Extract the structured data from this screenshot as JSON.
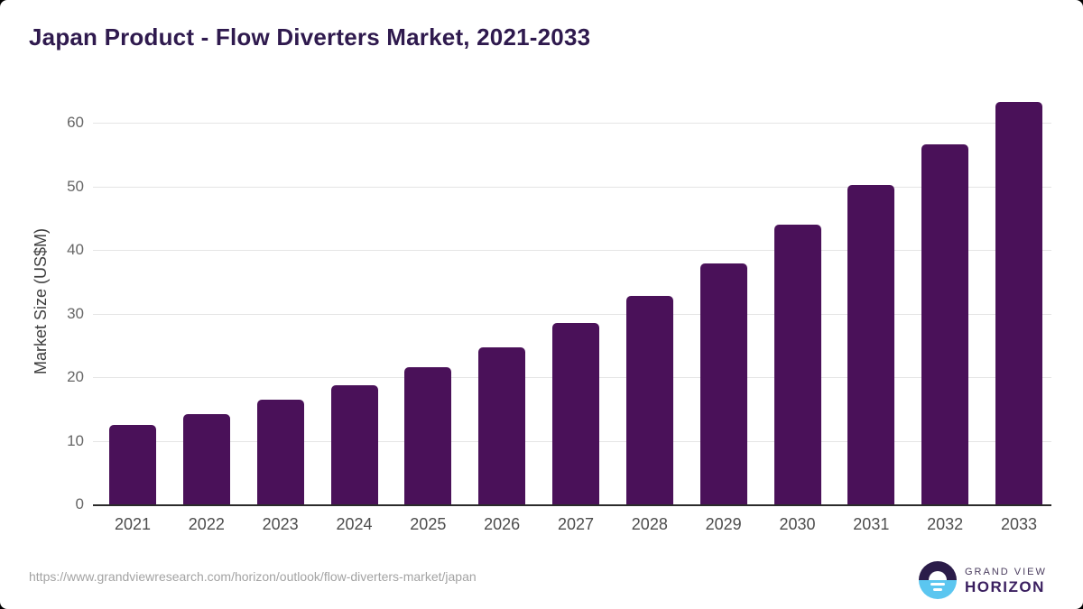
{
  "page": {
    "source_url": "https://www.grandviewresearch.com/horizon/outlook/flow-diverters-market/japan"
  },
  "chart_data": {
    "type": "bar",
    "title": "Japan Product - Flow Diverters Market, 2021-2033",
    "categories": [
      "2021",
      "2022",
      "2023",
      "2024",
      "2025",
      "2026",
      "2027",
      "2028",
      "2029",
      "2030",
      "2031",
      "2032",
      "2033"
    ],
    "values": [
      12.5,
      14.2,
      16.4,
      18.8,
      21.6,
      24.7,
      28.5,
      32.8,
      37.9,
      44.0,
      50.2,
      56.6,
      63.3
    ],
    "xlabel": "",
    "ylabel": "Market Size (US$M)",
    "yticks": [
      0,
      10,
      20,
      30,
      40,
      50,
      60
    ],
    "ylim": [
      0,
      63.7
    ],
    "grid": "horizontal",
    "legend": "none",
    "bar_color": "#4a1159"
  },
  "branding": {
    "logo_icon": "sunrise-horizon-icon",
    "logo_text_top": "GRAND VIEW",
    "logo_text_bottom": "HORIZON",
    "logo_dark_color": "#2b1c49",
    "logo_blue_color": "#5bc6f0"
  },
  "colors": {
    "title_text": "#2f1a4e",
    "bar": "#4a1159",
    "axis_line": "#2b2b2b",
    "gridline": "#e5e5e5",
    "tick_label": "#666666",
    "year_label": "#4d4d4d",
    "url_text": "#a3a3a3"
  }
}
